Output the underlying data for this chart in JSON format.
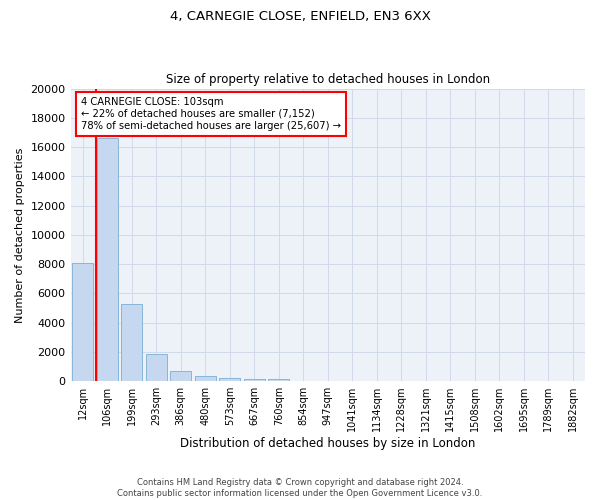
{
  "title_line1": "4, CARNEGIE CLOSE, ENFIELD, EN3 6XX",
  "title_line2": "Size of property relative to detached houses in London",
  "xlabel": "Distribution of detached houses by size in London",
  "ylabel": "Number of detached properties",
  "bar_color": "#c5d8ef",
  "bar_edge_color": "#7aafd4",
  "categories": [
    "12sqm",
    "106sqm",
    "199sqm",
    "293sqm",
    "386sqm",
    "480sqm",
    "573sqm",
    "667sqm",
    "760sqm",
    "854sqm",
    "947sqm",
    "1041sqm",
    "1134sqm",
    "1228sqm",
    "1321sqm",
    "1415sqm",
    "1508sqm",
    "1602sqm",
    "1695sqm",
    "1789sqm",
    "1882sqm"
  ],
  "values": [
    8100,
    16600,
    5300,
    1850,
    700,
    370,
    230,
    160,
    120,
    0,
    0,
    0,
    0,
    0,
    0,
    0,
    0,
    0,
    0,
    0,
    0
  ],
  "ylim": [
    0,
    20000
  ],
  "yticks": [
    0,
    2000,
    4000,
    6000,
    8000,
    10000,
    12000,
    14000,
    16000,
    18000,
    20000
  ],
  "annotation_line1": "4 CARNEGIE CLOSE: 103sqm",
  "annotation_line2": "← 22% of detached houses are smaller (7,152)",
  "annotation_line3": "78% of semi-detached houses are larger (25,607) →",
  "grid_color": "#d0daea",
  "background_color": "#edf2f9",
  "footer_line1": "Contains HM Land Registry data © Crown copyright and database right 2024.",
  "footer_line2": "Contains public sector information licensed under the Open Government Licence v3.0."
}
